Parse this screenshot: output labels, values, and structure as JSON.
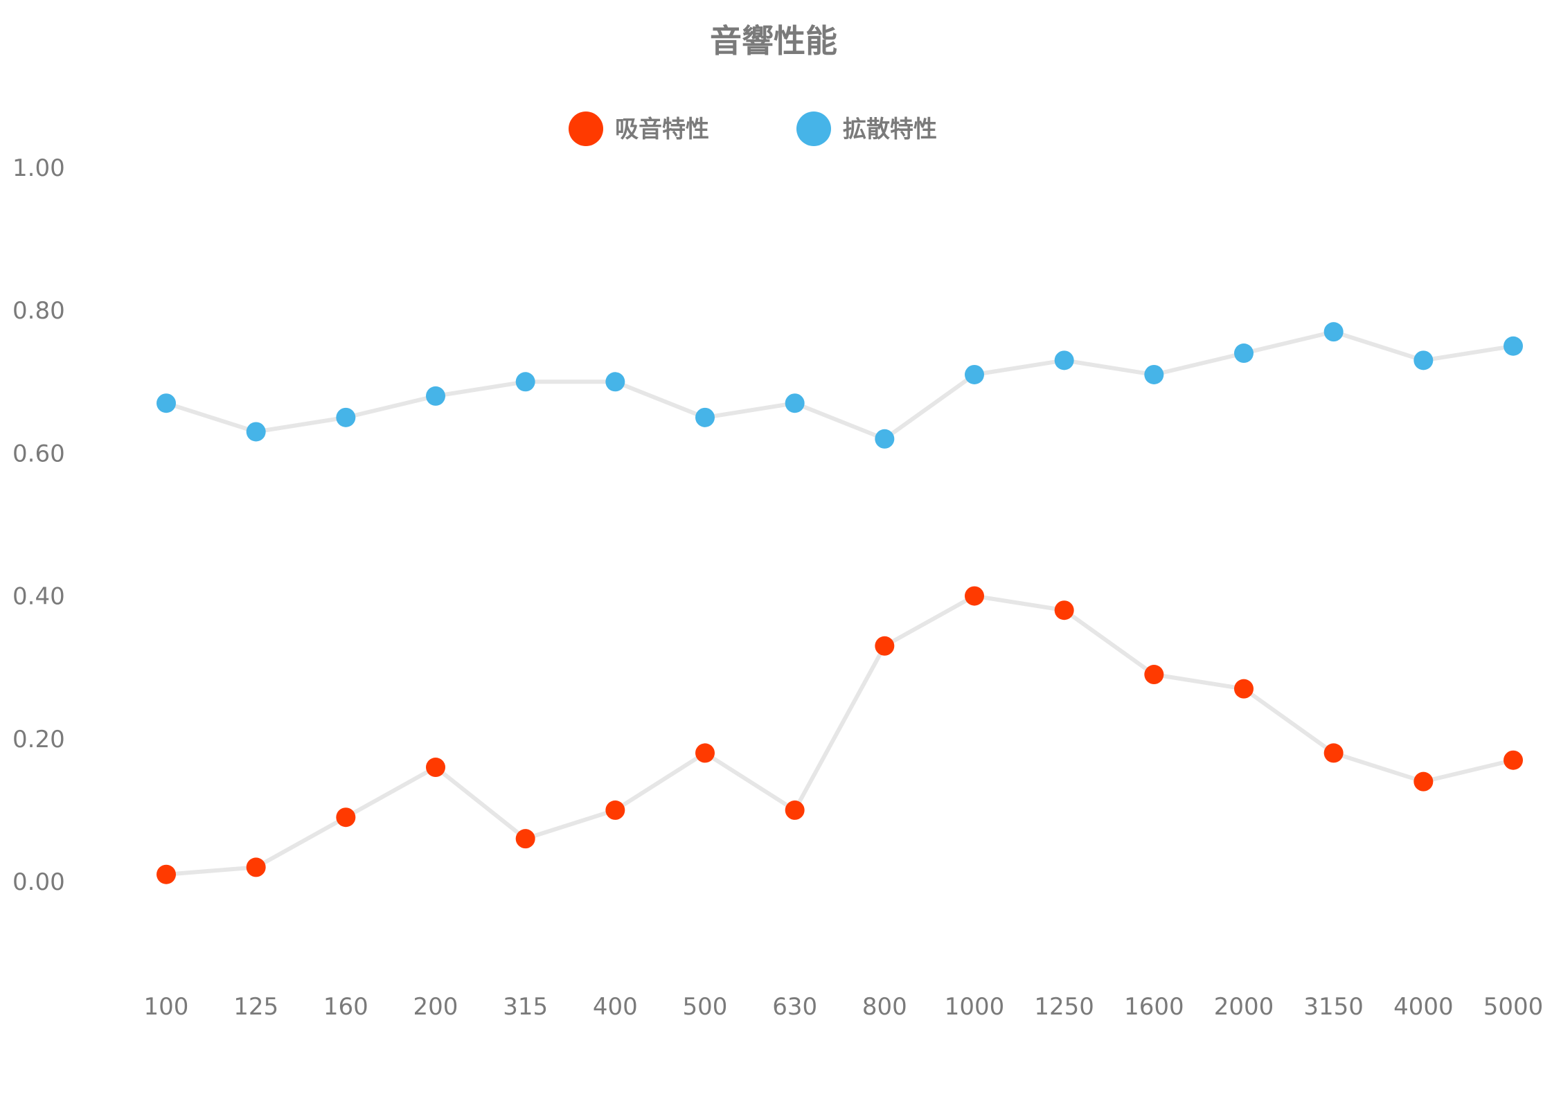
{
  "chart_data": {
    "type": "line",
    "title": "音響性能",
    "xlabel": "",
    "ylabel": "",
    "categories": [
      "100",
      "125",
      "160",
      "200",
      "315",
      "400",
      "500",
      "630",
      "800",
      "1000",
      "1250",
      "1600",
      "2000",
      "3150",
      "4000",
      "5000"
    ],
    "ylim": [
      -0.18,
      1.0
    ],
    "yticks": [
      "0.00",
      "0.20",
      "0.40",
      "0.60",
      "0.80",
      "1.00"
    ],
    "ytick_values": [
      0,
      0.2,
      0.4,
      0.6,
      0.8,
      1.0
    ],
    "grid": false,
    "legend_position": "top-center",
    "line_color": "#e6e6e6",
    "series": [
      {
        "name": "吸音特性",
        "color": "#ff3a00",
        "values": [
          0.01,
          0.02,
          0.09,
          0.16,
          0.06,
          0.1,
          0.18,
          0.1,
          0.33,
          0.4,
          0.38,
          0.29,
          0.27,
          0.18,
          0.14,
          0.17
        ]
      },
      {
        "name": "拡散特性",
        "color": "#46b4e8",
        "values": [
          0.67,
          0.63,
          0.65,
          0.68,
          0.7,
          0.7,
          0.65,
          0.67,
          0.62,
          0.71,
          0.73,
          0.71,
          0.74,
          0.77,
          0.73,
          0.75
        ]
      }
    ]
  }
}
